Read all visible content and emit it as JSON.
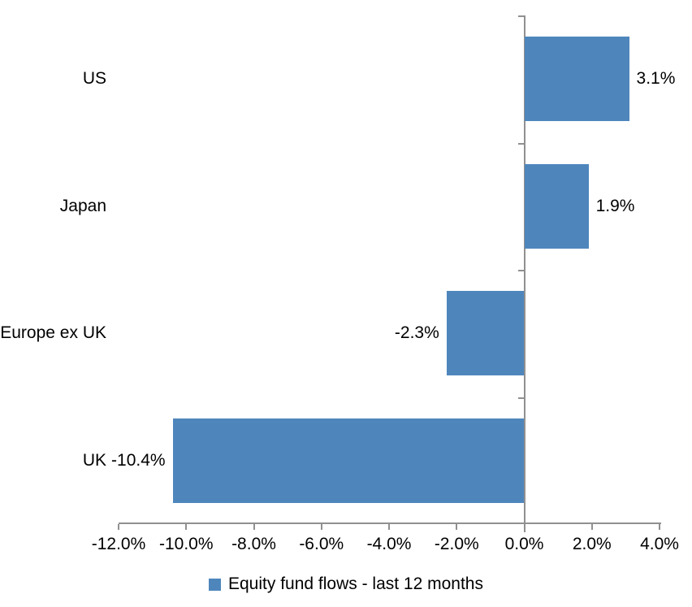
{
  "chart_data": {
    "type": "bar",
    "orientation": "horizontal",
    "title": "",
    "xlabel": "",
    "ylabel": "",
    "categories": [
      "US",
      "Japan",
      "Europe ex UK",
      "UK"
    ],
    "series": [
      {
        "name": "Equity fund flows - last 12 months",
        "values": [
          3.1,
          1.9,
          -2.3,
          -10.4
        ],
        "data_labels": [
          "3.1%",
          "1.9%",
          "-2.3%",
          "-10.4%"
        ]
      }
    ],
    "xlim": [
      -12,
      4
    ],
    "x_tick_step": 2,
    "x_tick_labels": [
      "-12.0%",
      "-10.0%",
      "-8.0%",
      "-6.0%",
      "-4.0%",
      "-2.0%",
      "0.0%",
      "2.0%",
      "4.0%"
    ],
    "grid": false,
    "legend_position": "bottom",
    "legend": [
      "Equity fund flows - last 12 months"
    ],
    "colors": {
      "bar": "#4E86BC",
      "axis": "#909090",
      "text": "#000000",
      "background": "#FFFFFF"
    }
  }
}
